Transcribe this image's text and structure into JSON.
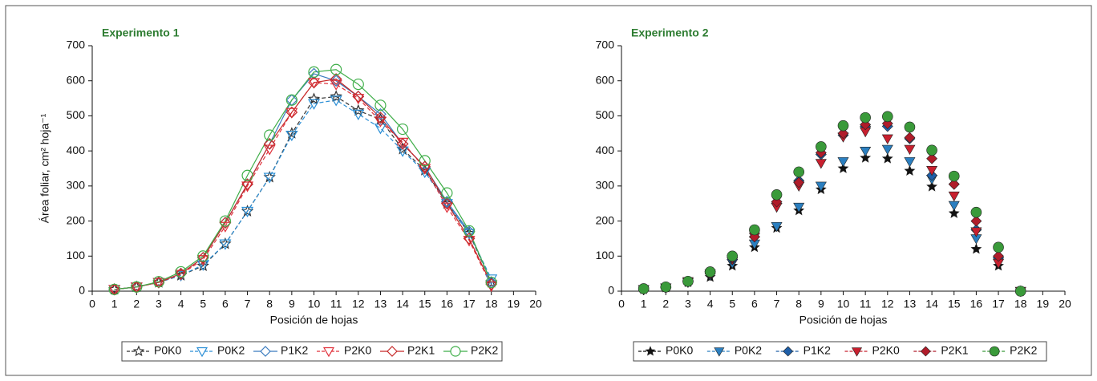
{
  "chart_data": [
    {
      "type": "scatter",
      "title": "Experimento 1",
      "x_label": "Posición de hojas",
      "y_label": "Área foliar, cm² hoja⁻¹",
      "x": [
        1,
        2,
        3,
        4,
        5,
        6,
        7,
        8,
        9,
        10,
        11,
        12,
        13,
        14,
        15,
        16,
        17,
        18
      ],
      "xlim": [
        0,
        20
      ],
      "xticks": [
        0,
        1,
        2,
        3,
        4,
        5,
        6,
        7,
        8,
        9,
        10,
        11,
        12,
        13,
        14,
        15,
        16,
        17,
        18,
        19,
        20
      ],
      "ylim": [
        0,
        700
      ],
      "yticks": [
        0,
        100,
        200,
        300,
        400,
        500,
        600,
        700
      ],
      "filled": false,
      "lines": true,
      "legend": "bottom",
      "series": [
        {
          "name": "P0K0",
          "color": "#333333",
          "marker": "star",
          "dashed": true,
          "values": [
            5,
            12,
            25,
            45,
            72,
            135,
            228,
            325,
            450,
            548,
            555,
            515,
            490,
            405,
            345,
            250,
            165,
            25
          ]
        },
        {
          "name": "P0K2",
          "color": "#2b8fd6",
          "marker": "triangle-down",
          "dashed": true,
          "values": [
            5,
            12,
            25,
            45,
            75,
            135,
            228,
            325,
            445,
            535,
            545,
            505,
            465,
            400,
            340,
            250,
            165,
            35
          ]
        },
        {
          "name": "P1K2",
          "color": "#3a7bbf",
          "marker": "diamond",
          "dashed": false,
          "values": [
            5,
            12,
            25,
            50,
            95,
            195,
            305,
            420,
            545,
            620,
            600,
            555,
            505,
            420,
            355,
            255,
            170,
            25
          ]
        },
        {
          "name": "P2K0",
          "color": "#e0303a",
          "marker": "triangle-down",
          "dashed": true,
          "values": [
            5,
            12,
            25,
            48,
            90,
            185,
            300,
            405,
            510,
            595,
            590,
            550,
            485,
            425,
            350,
            240,
            145,
            15
          ]
        },
        {
          "name": "P2K1",
          "color": "#c62828",
          "marker": "diamond",
          "dashed": false,
          "values": [
            5,
            12,
            25,
            50,
            95,
            195,
            305,
            420,
            510,
            595,
            605,
            555,
            495,
            420,
            355,
            250,
            150,
            20
          ]
        },
        {
          "name": "P2K2",
          "color": "#3fae49",
          "marker": "circle",
          "dashed": false,
          "values": [
            5,
            12,
            27,
            55,
            100,
            200,
            330,
            445,
            545,
            625,
            632,
            590,
            530,
            462,
            372,
            280,
            172,
            25
          ]
        }
      ]
    },
    {
      "type": "scatter",
      "title": "Experimento 2",
      "x_label": "Posición de hojas",
      "x": [
        1,
        2,
        3,
        4,
        5,
        6,
        7,
        8,
        9,
        10,
        11,
        12,
        13,
        14,
        15,
        16,
        17,
        18
      ],
      "xlim": [
        0,
        20
      ],
      "xticks": [
        0,
        1,
        2,
        3,
        4,
        5,
        6,
        7,
        8,
        9,
        10,
        11,
        12,
        13,
        14,
        15,
        16,
        17,
        18,
        19,
        20
      ],
      "ylim": [
        0,
        700
      ],
      "yticks": [
        0,
        100,
        200,
        300,
        400,
        500,
        600,
        700
      ],
      "filled": true,
      "lines": false,
      "legend": "bottom",
      "series": [
        {
          "name": "P0K0",
          "color": "#111111",
          "marker": "star",
          "values": [
            5,
            10,
            25,
            40,
            72,
            125,
            180,
            230,
            290,
            350,
            380,
            378,
            343,
            298,
            222,
            120,
            72,
            0
          ]
        },
        {
          "name": "P0K2",
          "color": "#2b7fc0",
          "marker": "triangle-down",
          "values": [
            5,
            10,
            25,
            45,
            80,
            135,
            185,
            240,
            300,
            370,
            400,
            405,
            370,
            320,
            245,
            150,
            85,
            0
          ]
        },
        {
          "name": "P1K2",
          "color": "#1f5fa8",
          "marker": "diamond",
          "values": [
            5,
            10,
            28,
            50,
            90,
            155,
            250,
            315,
            390,
            445,
            470,
            470,
            435,
            330,
            305,
            175,
            95,
            0
          ]
        },
        {
          "name": "P2K0",
          "color": "#c8202f",
          "marker": "triangle-down",
          "values": [
            5,
            10,
            28,
            50,
            90,
            155,
            240,
            300,
            365,
            440,
            455,
            435,
            405,
            345,
            272,
            170,
            80,
            0
          ]
        },
        {
          "name": "P2K1",
          "color": "#b01c2a",
          "marker": "diamond",
          "values": [
            5,
            10,
            28,
            55,
            95,
            155,
            255,
            310,
            395,
            450,
            475,
            478,
            438,
            378,
            305,
            200,
            100,
            0
          ]
        },
        {
          "name": "P2K2",
          "color": "#3a9a3a",
          "marker": "circle",
          "values": [
            7,
            12,
            28,
            55,
            100,
            175,
            275,
            340,
            412,
            472,
            495,
            498,
            468,
            402,
            328,
            225,
            125,
            0
          ]
        }
      ]
    }
  ]
}
